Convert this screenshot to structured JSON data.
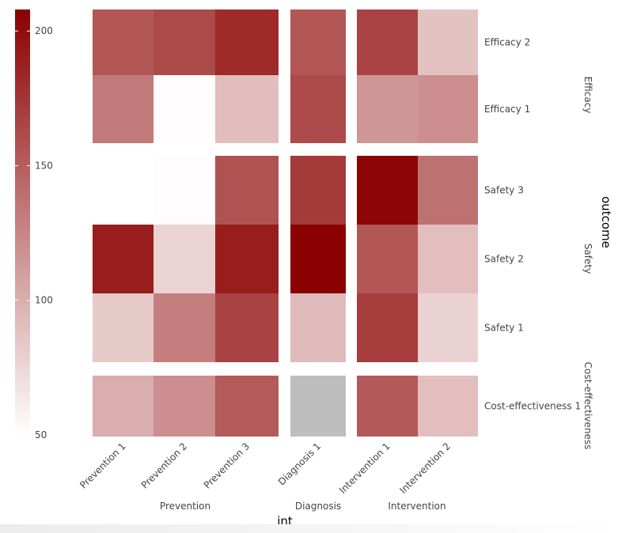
{
  "chart_data": {
    "type": "heatmap",
    "x_title": "int",
    "y_title": "outcome",
    "col_groups": [
      {
        "name": "Prevention",
        "columns": [
          "Prevention 1",
          "Prevention 2",
          "Prevention 3"
        ]
      },
      {
        "name": "Diagnosis",
        "columns": [
          "Diagnosis 1"
        ]
      },
      {
        "name": "Intervention",
        "columns": [
          "Intervention 1",
          "Intervention 2"
        ]
      }
    ],
    "row_groups": [
      {
        "name": "Efficacy",
        "rows": [
          "Efficacy 2",
          "Efficacy 1"
        ]
      },
      {
        "name": "Safety",
        "rows": [
          "Safety 3",
          "Safety 2",
          "Safety 1"
        ]
      },
      {
        "name": "Cost-effectiveness",
        "rows": [
          "Cost-effectiveness 1"
        ]
      }
    ],
    "values": {
      "Efficacy 2": [
        155,
        163,
        182,
        155,
        166,
        88
      ],
      "Efficacy 1": [
        133,
        52,
        91,
        162,
        115,
        120
      ],
      "Safety 3": [
        48,
        52,
        157,
        172,
        205,
        138
      ],
      "Safety 2": [
        190,
        77,
        190,
        210,
        155,
        90
      ],
      "Safety 1": [
        83,
        130,
        167,
        92,
        170,
        78
      ],
      "Cost-effectiveness 1": [
        100,
        120,
        152,
        null,
        153,
        90
      ]
    },
    "colorbar": {
      "min": 50,
      "max": 208,
      "ticks": [
        50,
        100,
        150,
        200
      ]
    },
    "missing_color": "#bebebe",
    "low_color": "#ffffff",
    "high_color": "#8b0000"
  }
}
